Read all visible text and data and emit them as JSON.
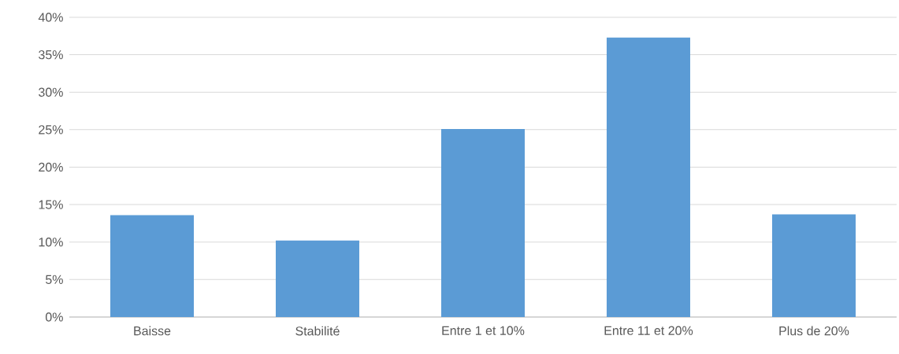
{
  "chart_data": {
    "type": "bar",
    "categories": [
      "Baisse",
      "Stabilité",
      "Entre 1 et 10%",
      "Entre 11 et 20%",
      "Plus de 20%"
    ],
    "values": [
      13.6,
      10.2,
      25.1,
      37.3,
      13.7
    ],
    "color": "#5b9bd5",
    "ylim": [
      0,
      40
    ],
    "yticks": [
      {
        "value": 0,
        "label": "0%"
      },
      {
        "value": 5,
        "label": "5%"
      },
      {
        "value": 10,
        "label": "10%"
      },
      {
        "value": 15,
        "label": "15%"
      },
      {
        "value": 20,
        "label": "20%"
      },
      {
        "value": 25,
        "label": "25%"
      },
      {
        "value": 30,
        "label": "30%"
      },
      {
        "value": 35,
        "label": "35%"
      },
      {
        "value": 40,
        "label": "40%"
      }
    ],
    "grid": "y"
  }
}
